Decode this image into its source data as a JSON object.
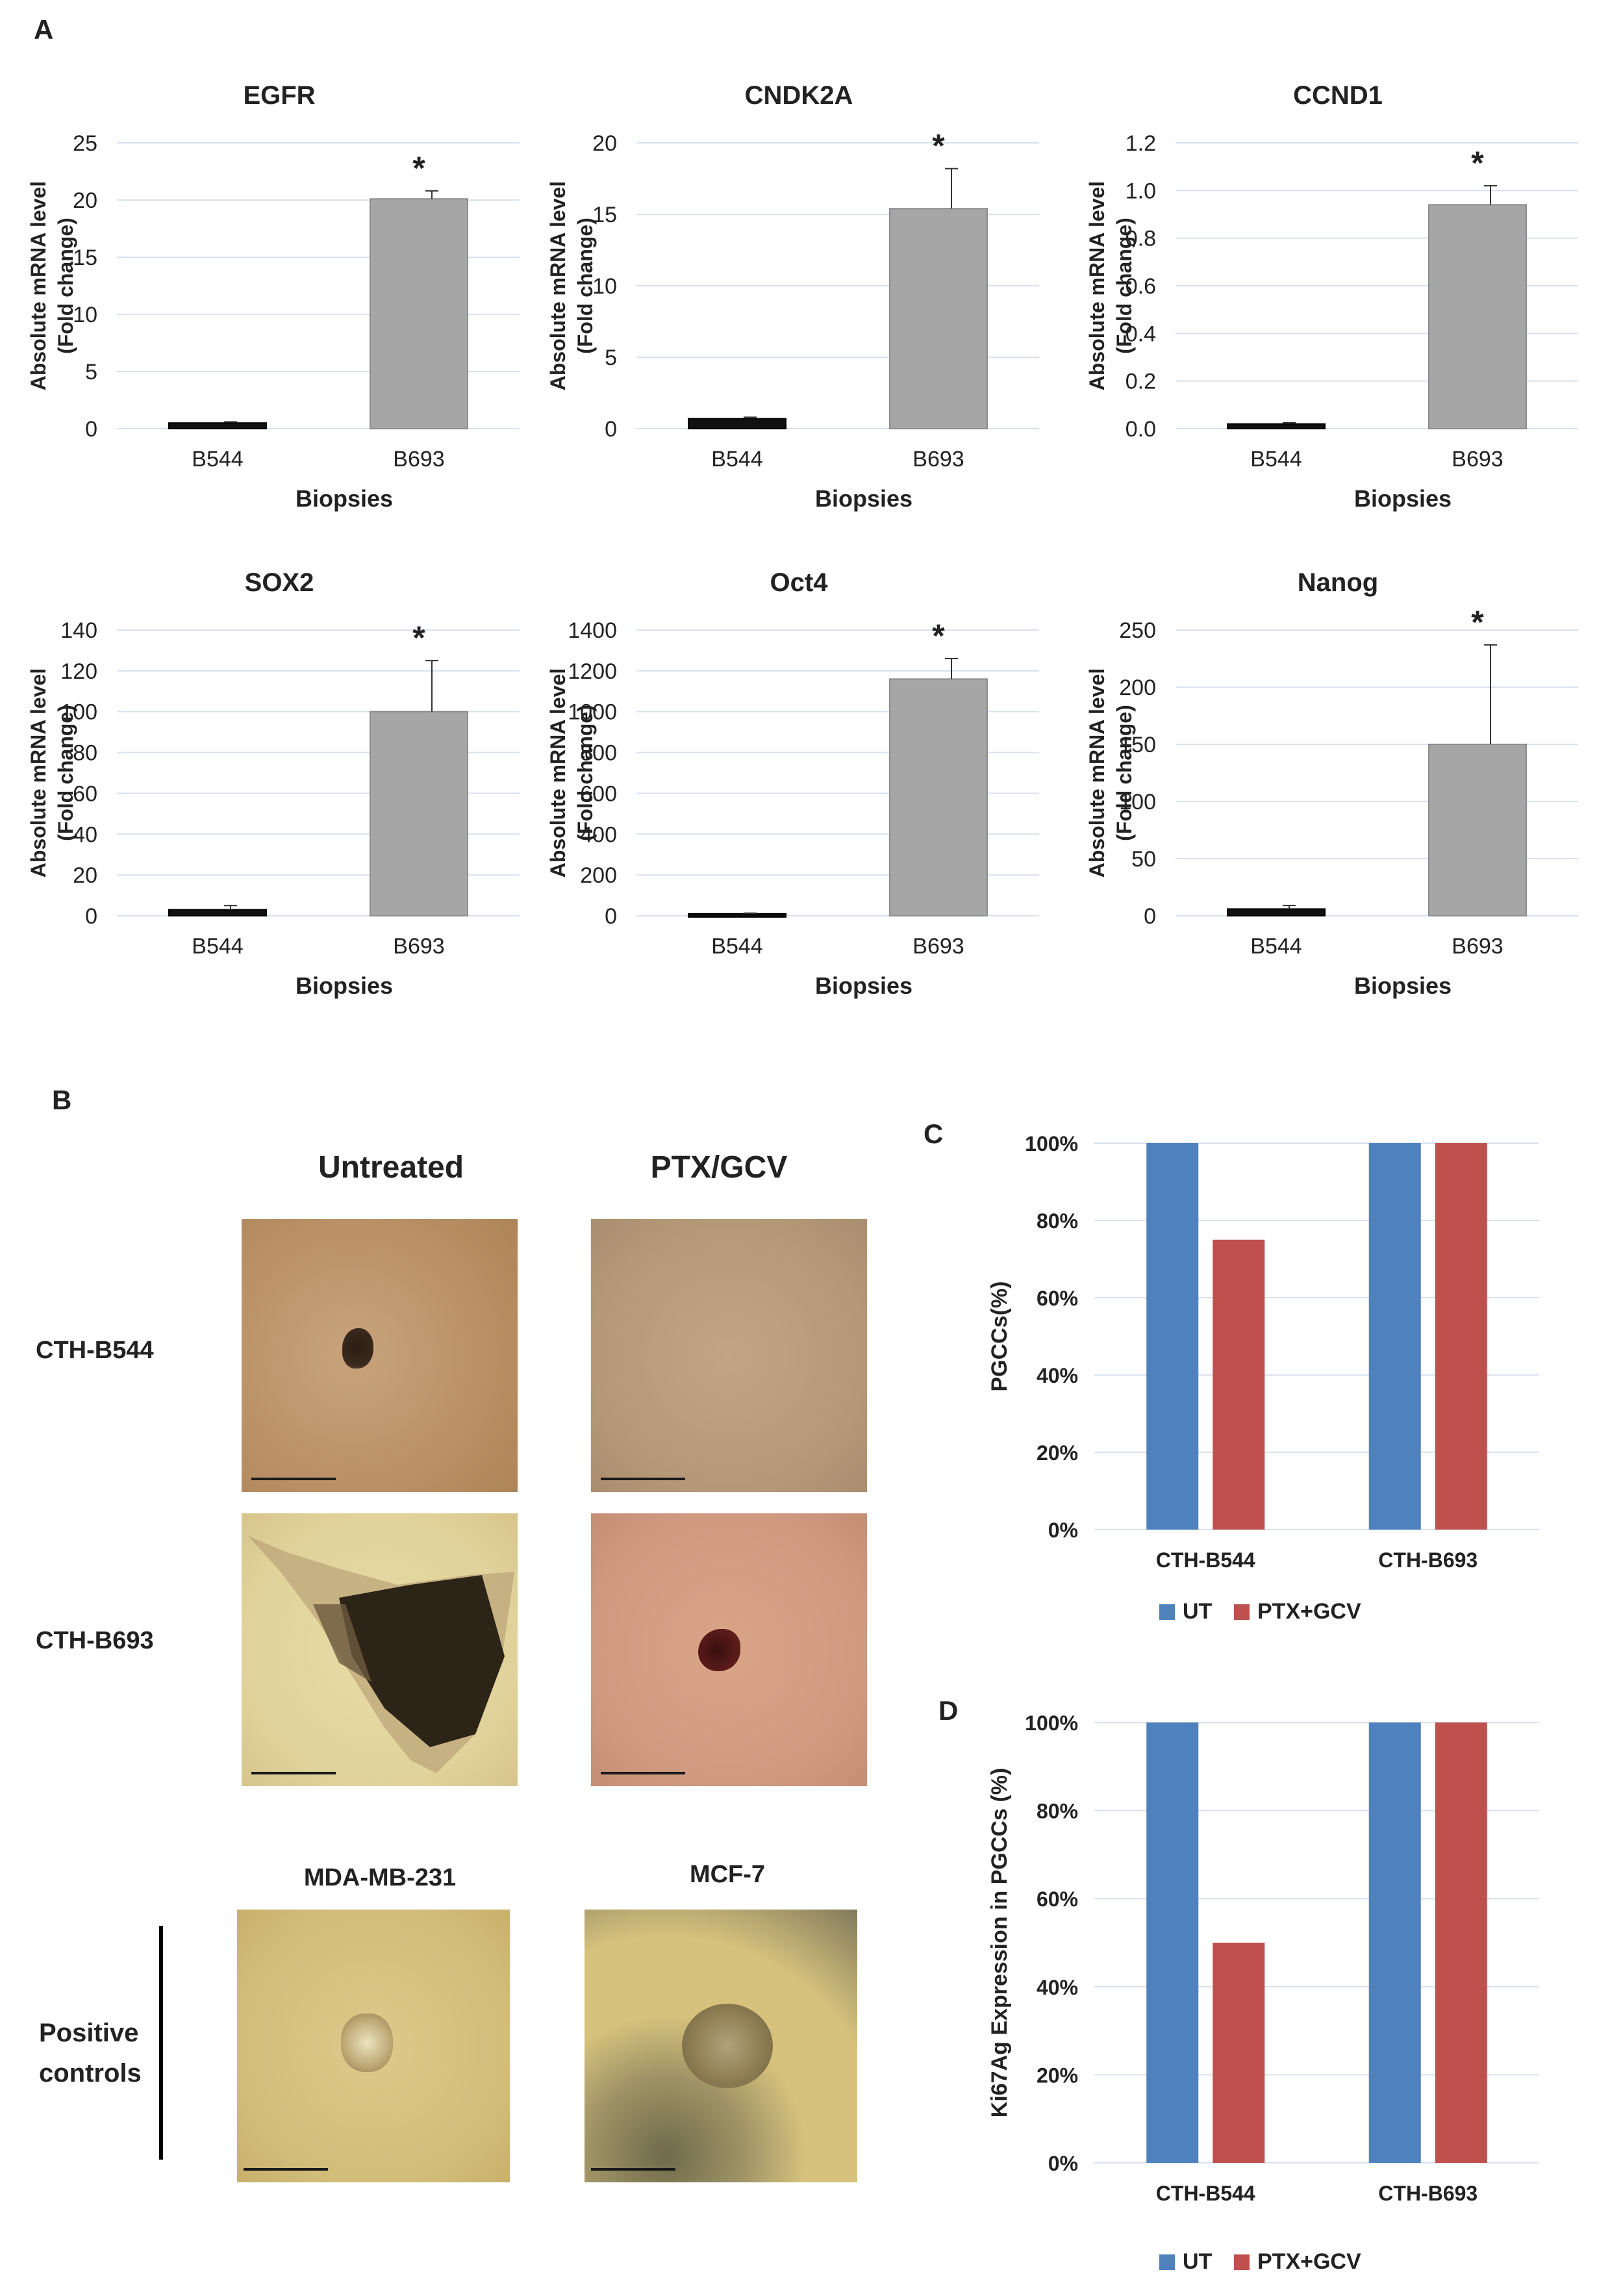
{
  "panels": {
    "a": "A",
    "b": "B",
    "c": "C",
    "d": "D"
  },
  "colors": {
    "dark_bar": "#111111",
    "gray_bar": "#a6a6a6",
    "ut": "#4f81bd",
    "ptx": "#c0504d",
    "grid": "#d9e1ee"
  },
  "panel_b": {
    "col_untreated": "Untreated",
    "col_ptx": "PTX/GCV",
    "row_b544": "CTH-B544",
    "row_b693": "CTH-B693",
    "ctrl_mda": "MDA-MB-231",
    "ctrl_mcf": "MCF-7",
    "positive_controls_line1": "Positive",
    "positive_controls_line2": "controls"
  },
  "chart_data": [
    {
      "type": "bar",
      "title": "EGFR",
      "categories": [
        "B544",
        "B693"
      ],
      "values": [
        0.5,
        20.1
      ],
      "errors": [
        0.1,
        0.7
      ],
      "ylim": [
        0,
        25
      ],
      "yticks": [
        "0",
        "5",
        "10",
        "15",
        "20",
        "25"
      ],
      "ylabel": "Absolute mRNA level",
      "ylabel2": "(Fold change)",
      "xlabel": "Biopsies",
      "annotation": "*"
    },
    {
      "type": "bar",
      "title": "CNDK2A",
      "categories": [
        "B544",
        "B693"
      ],
      "values": [
        0.7,
        15.4
      ],
      "errors": [
        0.1,
        2.8
      ],
      "ylim": [
        0,
        20
      ],
      "yticks": [
        "0",
        "5",
        "10",
        "15",
        "20"
      ],
      "ylabel": "Absolute mRNA level",
      "ylabel2": "(Fold change)",
      "xlabel": "Biopsies",
      "annotation": "*"
    },
    {
      "type": "bar",
      "title": "CCND1",
      "categories": [
        "B544",
        "B693"
      ],
      "values": [
        0.02,
        0.94
      ],
      "errors": [
        0.005,
        0.08
      ],
      "ylim": [
        0,
        1.2
      ],
      "yticks": [
        "0.0",
        "0.2",
        "0.4",
        "0.6",
        "0.8",
        "1.0",
        "1.2"
      ],
      "ylabel": "Absolute mRNA level",
      "ylabel2": "(Fold change)",
      "xlabel": "Biopsies",
      "annotation": "*"
    },
    {
      "type": "bar",
      "title": "SOX2",
      "categories": [
        "B544",
        "B693"
      ],
      "values": [
        3,
        100
      ],
      "errors": [
        2,
        25
      ],
      "ylim": [
        0,
        140
      ],
      "yticks": [
        "0",
        "20",
        "40",
        "60",
        "80",
        "100",
        "120",
        "140"
      ],
      "ylabel": "Absolute mRNA level",
      "ylabel2": "(Fold change)",
      "xlabel": "Biopsies",
      "annotation": "*"
    },
    {
      "type": "bar",
      "title": "Oct4",
      "categories": [
        "B544",
        "B693"
      ],
      "values": [
        10,
        1160
      ],
      "errors": [
        3,
        100
      ],
      "ylim": [
        0,
        1400
      ],
      "yticks": [
        "0",
        "200",
        "400",
        "600",
        "800",
        "1000",
        "1200",
        "1400"
      ],
      "ylabel": "Absolute mRNA level",
      "ylabel2": "(Fold change)",
      "xlabel": "Biopsies",
      "annotation": "*"
    },
    {
      "type": "bar",
      "title": "Nanog",
      "categories": [
        "B544",
        "B693"
      ],
      "values": [
        6,
        150
      ],
      "errors": [
        3,
        87
      ],
      "ylim": [
        0,
        250
      ],
      "yticks": [
        "0",
        "50",
        "100",
        "150",
        "200",
        "250"
      ],
      "ylabel": "Absolute mRNA level",
      "ylabel2": "(Fold change)",
      "xlabel": "Biopsies",
      "annotation": "*"
    },
    {
      "type": "bar",
      "title": "",
      "categories": [
        "CTH-B544",
        "CTH-B693"
      ],
      "series": [
        {
          "name": "UT",
          "values": [
            100,
            100
          ]
        },
        {
          "name": "PTX+GCV",
          "values": [
            75,
            100
          ]
        }
      ],
      "ylim": [
        0,
        100
      ],
      "yticks": [
        "0%",
        "20%",
        "40%",
        "60%",
        "80%",
        "100%"
      ],
      "ylabel": "PGCCs(%)",
      "legend": "bottom"
    },
    {
      "type": "bar",
      "title": "",
      "categories": [
        "CTH-B544",
        "CTH-B693"
      ],
      "series": [
        {
          "name": "UT",
          "values": [
            100,
            100
          ]
        },
        {
          "name": "PTX+GCV",
          "values": [
            50,
            100
          ]
        }
      ],
      "ylim": [
        0,
        100
      ],
      "yticks": [
        "0%",
        "20%",
        "40%",
        "60%",
        "80%",
        "100%"
      ],
      "ylabel": "Ki67Ag Expression in PGCCs (%)",
      "legend": "bottom"
    }
  ]
}
